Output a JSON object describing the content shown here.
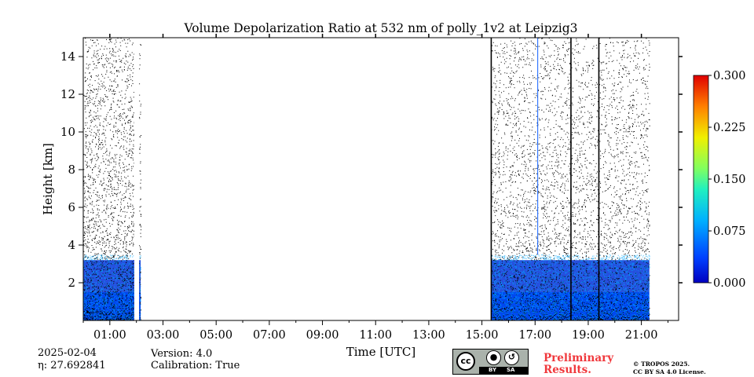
{
  "chart_data": {
    "type": "heatmap",
    "title": "Volume Depolarization Ratio at 532 nm of polly_1v2 at Leipzig3",
    "xlabel": "Time [UTC]",
    "ylabel": "Height [km]",
    "xlim_hours": [
      0.0,
      22.4
    ],
    "ylim_km": [
      0.0,
      15.0
    ],
    "x_ticks_hours": [
      1,
      3,
      5,
      7,
      9,
      11,
      13,
      15,
      17,
      19,
      21
    ],
    "x_tick_labels": [
      "01:00",
      "03:00",
      "05:00",
      "07:00",
      "09:00",
      "11:00",
      "13:00",
      "15:00",
      "17:00",
      "19:00",
      "21:00"
    ],
    "y_ticks": [
      2,
      4,
      6,
      8,
      10,
      12,
      14
    ],
    "y_tick_labels": [
      "2",
      "4",
      "6",
      "8",
      "10",
      "12",
      "14"
    ],
    "colorbar": {
      "min": 0.0,
      "max": 0.3,
      "ticks": [
        "0.000",
        "0.075",
        "0.150",
        "0.225",
        "0.300"
      ]
    },
    "data_periods_hours": [
      {
        "start": 0.0,
        "end": 1.92
      },
      {
        "start": 2.1,
        "end": 2.16
      },
      {
        "start": 15.35,
        "end": 21.3
      }
    ],
    "gap_lines_hours": [
      15.35,
      18.35,
      19.4
    ],
    "blue_line_hour": 17.1,
    "typical_values": {
      "near_surface_0_to_2km": 0.02,
      "layer_2_to_4km": 0.01,
      "above_4km": "noisy / no signal"
    }
  },
  "meta": {
    "date": "2025-02-04",
    "eta": "η: 27.692841",
    "version": "Version: 4.0",
    "calibration": "Calibration: True",
    "preliminary": [
      "Preliminary",
      "Results."
    ],
    "copyright": [
      "© TROPOS 2025.",
      "CC BY SA 4.0 License."
    ],
    "cc_badge": [
      "cc",
      "BY",
      "SA"
    ]
  }
}
